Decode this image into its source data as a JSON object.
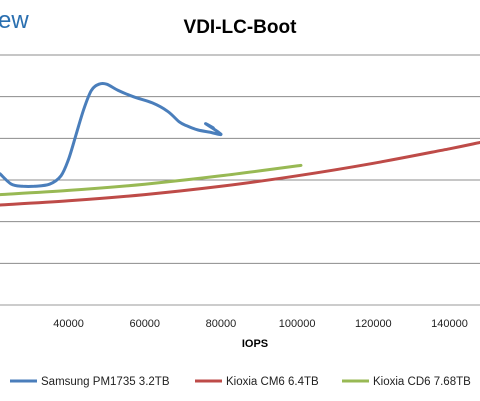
{
  "brand_text": "ew",
  "chart_data": {
    "type": "line",
    "title": "VDI-LC-Boot",
    "xlabel": "IOPS",
    "ylabel": "",
    "xlim": [
      22000,
      148000
    ],
    "ylim": [
      0,
      12
    ],
    "x_ticks": [
      40000,
      60000,
      80000,
      100000,
      120000,
      140000
    ],
    "x_tick_labels": [
      "40000",
      "60000",
      "80000",
      "100000",
      "120000",
      "140000"
    ],
    "y_gridlines": [
      0,
      2,
      4,
      6,
      8,
      10,
      12
    ],
    "grid": true,
    "legend_position": "bottom",
    "series": [
      {
        "name": "Samsung PM1735 3.2TB",
        "color": "#4a7ebb",
        "x": [
          22000,
          25000,
          28000,
          31000,
          35000,
          38000,
          40000,
          42000,
          44000,
          46000,
          48000,
          50000,
          53000,
          57000,
          62000,
          66000,
          69000,
          71000,
          74000,
          77000,
          80000,
          76000,
          78000
        ],
        "y": [
          6.3,
          5.8,
          5.7,
          5.7,
          5.8,
          6.2,
          7.0,
          8.2,
          9.4,
          10.3,
          10.6,
          10.6,
          10.3,
          10.0,
          9.7,
          9.3,
          8.8,
          8.6,
          8.4,
          8.3,
          8.2,
          8.7,
          8.5
        ]
      },
      {
        "name": "Kioxia CM6 6.4TB",
        "color": "#be4b48",
        "x": [
          22000,
          40000,
          60000,
          80000,
          100000,
          120000,
          140000,
          148000
        ],
        "y": [
          4.8,
          5.0,
          5.3,
          5.7,
          6.2,
          6.8,
          7.5,
          7.8
        ]
      },
      {
        "name": "Kioxia CD6 7.68TB",
        "color": "#98b954",
        "x": [
          22000,
          40000,
          60000,
          80000,
          101000
        ],
        "y": [
          5.3,
          5.5,
          5.8,
          6.2,
          6.7
        ]
      }
    ]
  }
}
